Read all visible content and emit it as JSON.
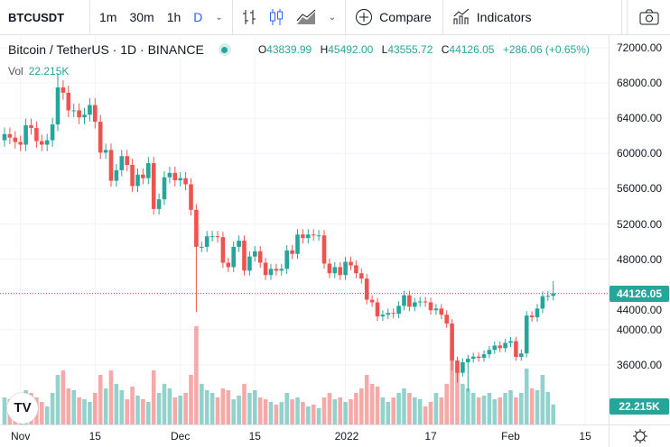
{
  "toolbar": {
    "symbol": "BTCUSDT",
    "intervals": [
      "1m",
      "30m",
      "1h",
      "D"
    ],
    "active_interval": "D",
    "compare_label": "Compare",
    "indicators_label": "Indicators"
  },
  "legend": {
    "title": "Bitcoin / TetherUS · 1D · BINANCE",
    "o_label": "O",
    "open": "43839.99",
    "h_label": "H",
    "high": "45492.00",
    "l_label": "L",
    "low": "43555.72",
    "c_label": "C",
    "close": "44126.05",
    "change": "+286.06 (+0.65%)",
    "vol_label": "Vol",
    "vol_value": "22.215K"
  },
  "colors": {
    "up": "#26a69a",
    "down": "#ef5350"
  },
  "price_tag": "44126.05",
  "volume_tag": "22.215K",
  "logo_text": "TV",
  "chart_data": {
    "type": "candlestick",
    "price_ticks": [
      "72000.00",
      "68000.00",
      "64000.00",
      "60000.00",
      "56000.00",
      "52000.00",
      "48000.00",
      "44000.00",
      "40000.00",
      "36000.00"
    ],
    "ylim": [
      32000,
      72000
    ],
    "time_ticks": [
      {
        "label": "Nov",
        "day": 3
      },
      {
        "label": "15",
        "day": 17
      },
      {
        "label": "Dec",
        "day": 33
      },
      {
        "label": "15",
        "day": 47
      },
      {
        "label": "2022",
        "day": 64
      },
      {
        "label": "17",
        "day": 80
      },
      {
        "label": "Feb",
        "day": 95
      },
      {
        "label": "15",
        "day": 109
      }
    ],
    "close": [
      62200,
      61800,
      61300,
      61000,
      63200,
      62900,
      61400,
      61000,
      61500,
      63300,
      67500,
      66900,
      64900,
      64900,
      64100,
      64400,
      65500,
      63600,
      60100,
      60400,
      56900,
      58100,
      59700,
      58700,
      56300,
      57600,
      57200,
      58900,
      53700,
      54800,
      57300,
      57800,
      56950,
      57200,
      56500,
      53600,
      49400,
      49400,
      50600,
      50600,
      50500,
      47600,
      47100,
      49400,
      50100,
      46700,
      48300,
      48900,
      47600,
      46200,
      46900,
      46700,
      46900,
      49000,
      48600,
      50800,
      50400,
      50800,
      50700,
      50700,
      47500,
      46400,
      47100,
      46200,
      47700,
      47300,
      46400,
      45800,
      43400,
      43100,
      41500,
      41700,
      41900,
      41800,
      42700,
      43900,
      42600,
      43100,
      43200,
      43100,
      42200,
      42400,
      41700,
      40700,
      36500,
      35100,
      36300,
      36700,
      36950,
      36800,
      37200,
      37700,
      38200,
      37900,
      38500,
      38700,
      36900,
      37300,
      41600,
      41400,
      42400,
      43800,
      43840,
      44126
    ],
    "first_open": 61500,
    "low_override": {
      "36": 42000,
      "84": 35400,
      "85": 34000,
      "87": 33000
    },
    "high_override": {
      "10": 69000,
      "103": 45492
    },
    "volume_k": [
      30,
      28,
      25,
      22,
      38,
      35,
      30,
      25,
      20,
      35,
      55,
      60,
      40,
      38,
      30,
      28,
      25,
      35,
      55,
      40,
      60,
      45,
      38,
      28,
      42,
      32,
      28,
      25,
      60,
      35,
      45,
      40,
      30,
      32,
      35,
      55,
      109,
      45,
      38,
      35,
      30,
      40,
      38,
      28,
      32,
      45,
      35,
      38,
      30,
      28,
      25,
      22,
      25,
      35,
      28,
      30,
      25,
      20,
      22,
      18,
      30,
      35,
      28,
      30,
      25,
      28,
      35,
      40,
      55,
      45,
      42,
      30,
      25,
      30,
      35,
      40,
      35,
      30,
      28,
      20,
      25,
      35,
      30,
      45,
      85,
      70,
      45,
      40,
      35,
      30,
      32,
      35,
      28,
      30,
      35,
      38,
      30,
      35,
      62,
      40,
      38,
      55,
      36,
      22.2
    ]
  }
}
